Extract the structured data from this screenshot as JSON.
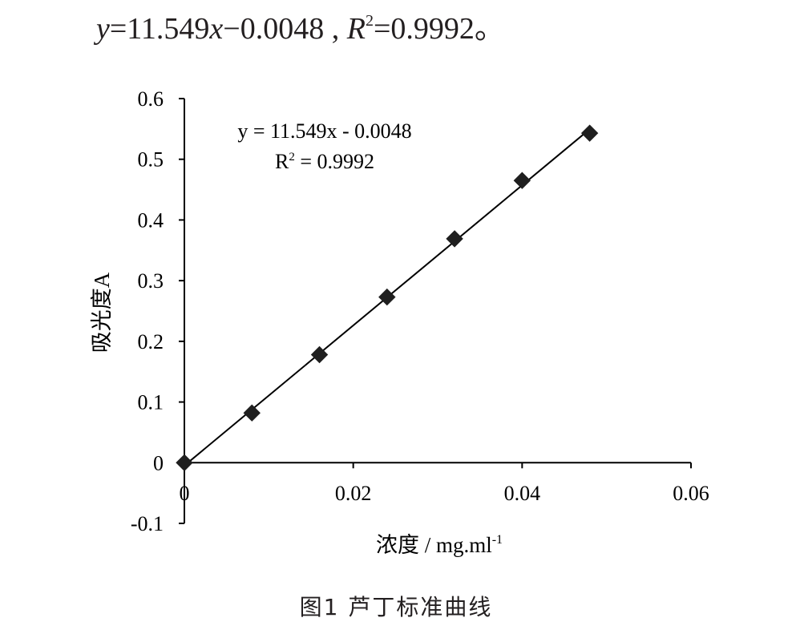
{
  "header_equation": {
    "y_var": "y",
    "equals_1": "=11.549",
    "x_var": "x",
    "tail": "−0.0048 , ",
    "r_var": "R",
    "r_sup": "2",
    "r_value": "=0.9992",
    "end": "。"
  },
  "caption": "图1   芦丁标准曲线",
  "colors": {
    "marker": "#1f1f1f",
    "line": "#000000",
    "axis": "#000000",
    "text": "#231f20"
  },
  "chart_data": {
    "type": "scatter",
    "title": "",
    "xlabel": "浓度 / mg.ml",
    "xlabel_sup": "-1",
    "ylabel": "吸光度A",
    "xlim": [
      0,
      0.06
    ],
    "ylim": [
      -0.1,
      0.6
    ],
    "xticks": [
      0,
      0.02,
      0.04,
      0.06
    ],
    "xtick_labels": [
      "0",
      "0.02",
      "0.04",
      "0.06"
    ],
    "yticks": [
      -0.1,
      0,
      0.1,
      0.2,
      0.3,
      0.4,
      0.5,
      0.6
    ],
    "ytick_labels": [
      "-0.1",
      "0",
      "0.1",
      "0.2",
      "0.3",
      "0.4",
      "0.5",
      "0.6"
    ],
    "grid": false,
    "legend": "none",
    "marker": "diamond",
    "series": [
      {
        "x": [
          0,
          0.008,
          0.016,
          0.024,
          0.032,
          0.04,
          0.048
        ],
        "y": [
          0,
          0.082,
          0.178,
          0.273,
          0.369,
          0.465,
          0.543
        ]
      }
    ],
    "trendline": {
      "slope": 11.549,
      "intercept": -0.0048,
      "x_range": [
        0,
        0.048
      ]
    },
    "annotations": {
      "equation": "y = 11.549x - 0.0048",
      "r_squared_prefix": "R",
      "r_squared_sup": "2",
      "r_squared_value": " = 0.9992"
    }
  }
}
